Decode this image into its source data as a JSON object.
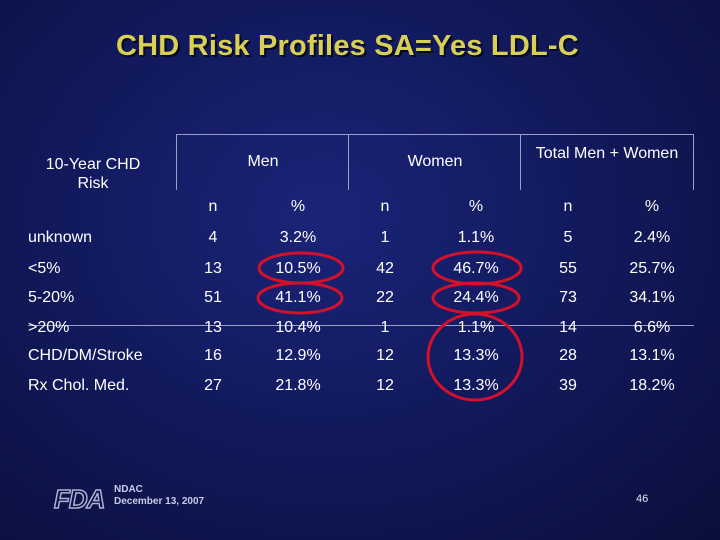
{
  "title": "CHD Risk Profiles SA=Yes LDL-C",
  "table": {
    "row_header_label": "10-Year CHD Risk",
    "groups": [
      "Men",
      "Women",
      "Total Men + Women"
    ],
    "subheaders": [
      "n",
      "%",
      "n",
      "%",
      "n",
      "%"
    ],
    "rows": [
      {
        "label": "unknown",
        "values": [
          "4",
          "3.2%",
          "1",
          "1.1%",
          "5",
          "2.4%"
        ]
      },
      {
        "label": "<5%",
        "values": [
          "13",
          "10.5%",
          "42",
          "46.7%",
          "55",
          "25.7%"
        ]
      },
      {
        "label": "5-20%",
        "values": [
          "51",
          "41.1%",
          "22",
          "24.4%",
          "73",
          "34.1%"
        ]
      },
      {
        "label": ">20%",
        "values": [
          "13",
          "10.4%",
          "1",
          "1.1%",
          "14",
          "6.6%"
        ]
      },
      {
        "label": "CHD/DM/Stroke",
        "values": [
          "16",
          "12.9%",
          "12",
          "13.3%",
          "28",
          "13.1%"
        ]
      },
      {
        "label": "Rx Chol. Med.",
        "values": [
          "27",
          "21.8%",
          "12",
          "13.3%",
          "39",
          "18.2%"
        ]
      }
    ]
  },
  "annotation_color": "#d4102a",
  "footer": {
    "logo": "FDA",
    "org": "NDAC",
    "date": "December 13, 2007",
    "page_number": "46"
  }
}
